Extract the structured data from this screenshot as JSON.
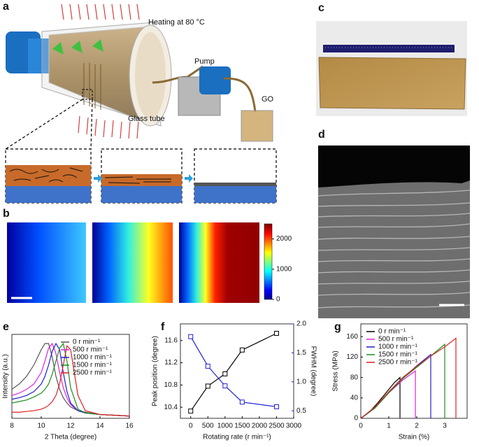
{
  "panel_labels": [
    "a",
    "b",
    "c",
    "d",
    "e",
    "f",
    "g"
  ],
  "diagram": {
    "heating": "Heating at 80 °C",
    "pump": "Pump",
    "tube": "Glass tube",
    "go": "GO"
  },
  "chart_data": [
    {
      "type": "colorbar",
      "ylim": [
        0,
        2500
      ],
      "yticks": [
        0,
        1000,
        2000
      ]
    },
    {
      "type": "line",
      "legend": "upper right",
      "x_label": "2 Theta (degree)",
      "y_label": "Intensity (a.u.)",
      "xlim": [
        8,
        16
      ],
      "xticks": [
        8,
        10,
        12,
        14,
        16
      ],
      "ylim": [
        0,
        1.1
      ],
      "x": [
        8,
        8.5,
        9,
        9.5,
        10,
        10.25,
        10.5,
        10.75,
        11,
        11.25,
        11.5,
        11.75,
        12,
        12.5,
        13,
        14,
        15,
        16
      ],
      "series": [
        {
          "name": "0 r min⁻¹",
          "color": "#555555",
          "values": [
            0.38,
            0.45,
            0.55,
            0.7,
            0.9,
            0.98,
            0.98,
            0.8,
            0.55,
            0.38,
            0.27,
            0.2,
            0.15,
            0.1,
            0.08,
            0.05,
            0.04,
            0.03
          ]
        },
        {
          "name": "500 r min⁻¹",
          "color": "#e020e0",
          "values": [
            0.3,
            0.33,
            0.38,
            0.45,
            0.6,
            0.75,
            0.92,
            0.98,
            0.85,
            0.6,
            0.4,
            0.27,
            0.18,
            0.1,
            0.07,
            0.05,
            0.04,
            0.03
          ]
        },
        {
          "name": "1000 r min⁻¹",
          "color": "#1f1fd0",
          "values": [
            0.25,
            0.27,
            0.3,
            0.35,
            0.45,
            0.55,
            0.7,
            0.88,
            0.98,
            0.9,
            0.6,
            0.35,
            0.2,
            0.1,
            0.07,
            0.05,
            0.04,
            0.03
          ]
        },
        {
          "name": "1500 r min⁻¹",
          "color": "#1a8f1a",
          "values": [
            0.2,
            0.22,
            0.24,
            0.28,
            0.33,
            0.38,
            0.45,
            0.58,
            0.75,
            0.92,
            0.98,
            0.75,
            0.4,
            0.12,
            0.07,
            0.05,
            0.04,
            0.03
          ]
        },
        {
          "name": "2500 r min⁻¹",
          "color": "#e02020",
          "values": [
            0.08,
            0.08,
            0.09,
            0.1,
            0.12,
            0.14,
            0.17,
            0.22,
            0.3,
            0.45,
            0.7,
            0.95,
            0.9,
            0.3,
            0.1,
            0.05,
            0.04,
            0.03
          ]
        }
      ]
    },
    {
      "type": "line",
      "marker": "square",
      "x_label": "Rotating rate (r min⁻¹)",
      "y_label": "Peak position (degree)",
      "y2_label": "FWHM (degree)",
      "xlim": [
        -300,
        3000
      ],
      "xticks": [
        0,
        500,
        1000,
        1500,
        2000,
        2500,
        3000
      ],
      "ylim": [
        10.2,
        11.9
      ],
      "yticks": [
        10.4,
        10.8,
        11.2,
        11.6
      ],
      "y2lim": [
        0.37,
        2.0
      ],
      "y2ticks": [
        0.5,
        {
          "value": 1,
          "label": "1.0"
        },
        1.5,
        {
          "value": 2,
          "label": "2.0"
        }
      ],
      "x": [
        0,
        500,
        1000,
        1500,
        2500
      ],
      "series": [
        {
          "color": "#000000",
          "values": [
            10.33,
            10.78,
            11.0,
            11.43,
            11.73
          ]
        },
        {
          "color": "#1f1fd0",
          "axis": "y2",
          "values": [
            1.78,
            1.27,
            0.93,
            0.65,
            0.57
          ]
        }
      ]
    },
    {
      "type": "line",
      "legend": "upper left",
      "x_label": "Strain (%)",
      "y_label": "Stress (MPa)",
      "xlim": [
        0,
        3.8
      ],
      "xticks": [
        0,
        1,
        2,
        3
      ],
      "ylim": [
        0,
        185
      ],
      "yticks": [
        0,
        40,
        80,
        120,
        160
      ],
      "series": [
        {
          "name": "0 r min⁻¹",
          "color": "#000000",
          "x": [
            0,
            0.3,
            0.6,
            0.9,
            1.2,
            1.4,
            1.4
          ],
          "values": [
            0,
            12,
            30,
            50,
            70,
            80,
            0
          ]
        },
        {
          "name": "500 r min⁻¹",
          "color": "#e020e0",
          "x": [
            0,
            0.5,
            1,
            1.5,
            1.95,
            1.95
          ],
          "values": [
            0,
            20,
            50,
            75,
            93,
            0
          ]
        },
        {
          "name": "1000 r min⁻¹",
          "color": "#1f1fd0",
          "x": [
            0,
            0.5,
            1,
            1.5,
            2,
            2.5,
            2.5
          ],
          "values": [
            0,
            20,
            50,
            78,
            103,
            125,
            0
          ]
        },
        {
          "name": "1500 r min⁻¹",
          "color": "#1a8f1a",
          "x": [
            0,
            0.5,
            1,
            1.5,
            2,
            2.5,
            3,
            3
          ],
          "values": [
            0,
            20,
            50,
            78,
            100,
            122,
            145,
            0
          ]
        },
        {
          "name": "2500 r min⁻¹",
          "color": "#e02020",
          "x": [
            0,
            0.5,
            1,
            1.5,
            2,
            2.5,
            3,
            3.4,
            3.4
          ],
          "values": [
            0,
            22,
            52,
            80,
            102,
            122,
            140,
            157,
            0
          ]
        }
      ]
    }
  ]
}
